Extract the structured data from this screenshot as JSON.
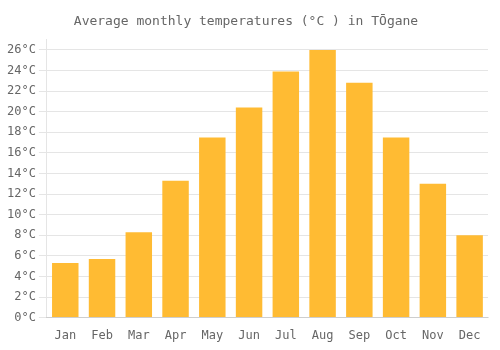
{
  "chart_data": {
    "type": "bar",
    "title": "Average monthly temperatures (°C ) in TŌgane",
    "categories": [
      "Jan",
      "Feb",
      "Mar",
      "Apr",
      "May",
      "Jun",
      "Jul",
      "Aug",
      "Sep",
      "Oct",
      "Nov",
      "Dec"
    ],
    "values": [
      5.3,
      5.7,
      8.3,
      13.3,
      17.5,
      20.4,
      23.9,
      26.0,
      22.8,
      17.5,
      13.0,
      8.0
    ],
    "color": "#FFBB33",
    "ylim": [
      0,
      27
    ],
    "yticks": [
      {
        "value": 0,
        "label": "0°C"
      },
      {
        "value": 2,
        "label": "2°C"
      },
      {
        "value": 4,
        "label": "4°C"
      },
      {
        "value": 6,
        "label": "6°C"
      },
      {
        "value": 8,
        "label": "8°C"
      },
      {
        "value": 10,
        "label": "10°C"
      },
      {
        "value": 12,
        "label": "12°C"
      },
      {
        "value": 14,
        "label": "14°C"
      },
      {
        "value": 16,
        "label": "16°C"
      },
      {
        "value": 18,
        "label": "18°C"
      },
      {
        "value": 20,
        "label": "20°C"
      },
      {
        "value": 22,
        "label": "22°C"
      },
      {
        "value": 24,
        "label": "24°C"
      },
      {
        "value": 26,
        "label": "26°C"
      }
    ],
    "grid": true
  }
}
